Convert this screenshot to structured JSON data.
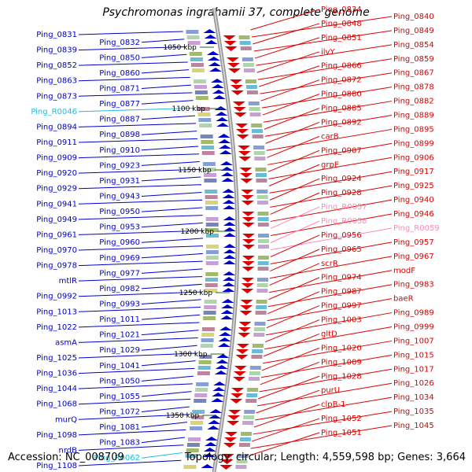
{
  "title": "Psychromonas ingrahamii 37, complete genome",
  "accession": "Accession: NC_008709",
  "summary": "Topology: circular; Length: 4,559,598 bp; Genes: 3,664",
  "colors": {
    "forward_strand": "#0000cc",
    "reverse_strand": "#dd0000",
    "trna": "#22bbdd",
    "rrna": "#ff88bb",
    "ruler": "#999999",
    "tick": "#226622"
  },
  "position_ticks": [
    "1050 kbp",
    "1100 kbp",
    "1150 kbp",
    "1200 kbp",
    "1250 kbp",
    "1300 kbp",
    "1350 kbp"
  ],
  "left_labels": [
    {
      "text": "Ping_0831",
      "type": "forward_strand"
    },
    {
      "text": "Ping_0832",
      "type": "forward_strand"
    },
    {
      "text": "Ping_0839",
      "type": "forward_strand"
    },
    {
      "text": "Ping_0850",
      "type": "forward_strand"
    },
    {
      "text": "Ping_0852",
      "type": "forward_strand"
    },
    {
      "text": "Ping_0860",
      "type": "forward_strand"
    },
    {
      "text": "Ping_0863",
      "type": "forward_strand"
    },
    {
      "text": "Ping_0871",
      "type": "forward_strand"
    },
    {
      "text": "Ping_0873",
      "type": "forward_strand"
    },
    {
      "text": "Ping_0877",
      "type": "forward_strand"
    },
    {
      "text": "Ping_R0046",
      "type": "trna"
    },
    {
      "text": "Ping_0887",
      "type": "forward_strand"
    },
    {
      "text": "Ping_0894",
      "type": "forward_strand"
    },
    {
      "text": "Ping_0898",
      "type": "forward_strand"
    },
    {
      "text": "Ping_0911",
      "type": "forward_strand"
    },
    {
      "text": "Ping_0910",
      "type": "forward_strand"
    },
    {
      "text": "Ping_0909",
      "type": "forward_strand"
    },
    {
      "text": "Ping_0923",
      "type": "forward_strand"
    },
    {
      "text": "Ping_0920",
      "type": "forward_strand"
    },
    {
      "text": "Ping_0931",
      "type": "forward_strand"
    },
    {
      "text": "Ping_0929",
      "type": "forward_strand"
    },
    {
      "text": "Ping_0943",
      "type": "forward_strand"
    },
    {
      "text": "Ping_0941",
      "type": "forward_strand"
    },
    {
      "text": "Ping_0950",
      "type": "forward_strand"
    },
    {
      "text": "Ping_0949",
      "type": "forward_strand"
    },
    {
      "text": "Ping_0953",
      "type": "forward_strand"
    },
    {
      "text": "Ping_0961",
      "type": "forward_strand"
    },
    {
      "text": "Ping_0960",
      "type": "forward_strand"
    },
    {
      "text": "Ping_0970",
      "type": "forward_strand"
    },
    {
      "text": "Ping_0969",
      "type": "forward_strand"
    },
    {
      "text": "Ping_0978",
      "type": "forward_strand"
    },
    {
      "text": "Ping_0977",
      "type": "forward_strand"
    },
    {
      "text": "mtlR",
      "type": "forward_strand"
    },
    {
      "text": "Ping_0982",
      "type": "forward_strand"
    },
    {
      "text": "Ping_0992",
      "type": "forward_strand"
    },
    {
      "text": "Ping_0993",
      "type": "forward_strand"
    },
    {
      "text": "Ping_1013",
      "type": "forward_strand"
    },
    {
      "text": "Ping_1011",
      "type": "forward_strand"
    },
    {
      "text": "Ping_1022",
      "type": "forward_strand"
    },
    {
      "text": "Ping_1021",
      "type": "forward_strand"
    },
    {
      "text": "asmA",
      "type": "forward_strand"
    },
    {
      "text": "Ping_1029",
      "type": "forward_strand"
    },
    {
      "text": "Ping_1025",
      "type": "forward_strand"
    },
    {
      "text": "Ping_1041",
      "type": "forward_strand"
    },
    {
      "text": "Ping_1036",
      "type": "forward_strand"
    },
    {
      "text": "Ping_1050",
      "type": "forward_strand"
    },
    {
      "text": "Ping_1044",
      "type": "forward_strand"
    },
    {
      "text": "Ping_1055",
      "type": "forward_strand"
    },
    {
      "text": "Ping_1068",
      "type": "forward_strand"
    },
    {
      "text": "Ping_1072",
      "type": "forward_strand"
    },
    {
      "text": "murQ",
      "type": "forward_strand"
    },
    {
      "text": "Ping_1081",
      "type": "forward_strand"
    },
    {
      "text": "Ping_1098",
      "type": "forward_strand"
    },
    {
      "text": "Ping_1083",
      "type": "forward_strand"
    },
    {
      "text": "nrdB",
      "type": "forward_strand"
    },
    {
      "text": "Ping_R0062",
      "type": "trna"
    },
    {
      "text": "Ping_1108",
      "type": "forward_strand"
    }
  ],
  "right_labels": [
    {
      "text": "Ping_0834",
      "type": "reverse_strand"
    },
    {
      "text": "Ping_0840",
      "type": "reverse_strand"
    },
    {
      "text": "Ping_0848",
      "type": "reverse_strand"
    },
    {
      "text": "Ping_0849",
      "type": "reverse_strand"
    },
    {
      "text": "Ping_0851",
      "type": "reverse_strand"
    },
    {
      "text": "Ping_0854",
      "type": "reverse_strand"
    },
    {
      "text": "ilvY",
      "type": "reverse_strand"
    },
    {
      "text": "Ping_0859",
      "type": "reverse_strand"
    },
    {
      "text": "Ping_0866",
      "type": "reverse_strand"
    },
    {
      "text": "Ping_0867",
      "type": "reverse_strand"
    },
    {
      "text": "Ping_0872",
      "type": "reverse_strand"
    },
    {
      "text": "Ping_0878",
      "type": "reverse_strand"
    },
    {
      "text": "Ping_0880",
      "type": "reverse_strand"
    },
    {
      "text": "Ping_0882",
      "type": "reverse_strand"
    },
    {
      "text": "Ping_0885",
      "type": "reverse_strand"
    },
    {
      "text": "Ping_0889",
      "type": "reverse_strand"
    },
    {
      "text": "Ping_0892",
      "type": "reverse_strand"
    },
    {
      "text": "Ping_0895",
      "type": "reverse_strand"
    },
    {
      "text": "carB",
      "type": "reverse_strand"
    },
    {
      "text": "Ping_0899",
      "type": "reverse_strand"
    },
    {
      "text": "Ping_0907",
      "type": "reverse_strand"
    },
    {
      "text": "Ping_0906",
      "type": "reverse_strand"
    },
    {
      "text": "grpE",
      "type": "reverse_strand"
    },
    {
      "text": "Ping_0917",
      "type": "reverse_strand"
    },
    {
      "text": "Ping_0924",
      "type": "reverse_strand"
    },
    {
      "text": "Ping_0925",
      "type": "reverse_strand"
    },
    {
      "text": "Ping_0928",
      "type": "reverse_strand"
    },
    {
      "text": "Ping_0940",
      "type": "reverse_strand"
    },
    {
      "text": "Ping_R0057",
      "type": "rrna"
    },
    {
      "text": "Ping_0946",
      "type": "reverse_strand"
    },
    {
      "text": "Ping_R0058",
      "type": "rrna"
    },
    {
      "text": "Ping_R0059",
      "type": "rrna"
    },
    {
      "text": "Ping_0956",
      "type": "reverse_strand"
    },
    {
      "text": "Ping_0957",
      "type": "reverse_strand"
    },
    {
      "text": "Ping_0965",
      "type": "reverse_strand"
    },
    {
      "text": "Ping_0967",
      "type": "reverse_strand"
    },
    {
      "text": "scrR",
      "type": "reverse_strand"
    },
    {
      "text": "modF",
      "type": "reverse_strand"
    },
    {
      "text": "Ping_0974",
      "type": "reverse_strand"
    },
    {
      "text": "Ping_0983",
      "type": "reverse_strand"
    },
    {
      "text": "Ping_0987",
      "type": "reverse_strand"
    },
    {
      "text": "baeR",
      "type": "reverse_strand"
    },
    {
      "text": "Ping_0997",
      "type": "reverse_strand"
    },
    {
      "text": "Ping_0989",
      "type": "reverse_strand"
    },
    {
      "text": "Ping_1003",
      "type": "reverse_strand"
    },
    {
      "text": "Ping_0999",
      "type": "reverse_strand"
    },
    {
      "text": "gltD",
      "type": "reverse_strand"
    },
    {
      "text": "Ping_1007",
      "type": "reverse_strand"
    },
    {
      "text": "Ping_1020",
      "type": "reverse_strand"
    },
    {
      "text": "Ping_1015",
      "type": "reverse_strand"
    },
    {
      "text": "Ping_1009",
      "type": "reverse_strand"
    },
    {
      "text": "Ping_1017",
      "type": "reverse_strand"
    },
    {
      "text": "Ping_1028",
      "type": "reverse_strand"
    },
    {
      "text": "Ping_1026",
      "type": "reverse_strand"
    },
    {
      "text": "purU",
      "type": "reverse_strand"
    },
    {
      "text": "Ping_1034",
      "type": "reverse_strand"
    },
    {
      "text": "clpB-1",
      "type": "reverse_strand"
    },
    {
      "text": "Ping_1035",
      "type": "reverse_strand"
    },
    {
      "text": "Ping_1052",
      "type": "reverse_strand"
    },
    {
      "text": "Ping_1045",
      "type": "reverse_strand"
    },
    {
      "text": "Ping_1051",
      "type": "reverse_strand"
    }
  ]
}
